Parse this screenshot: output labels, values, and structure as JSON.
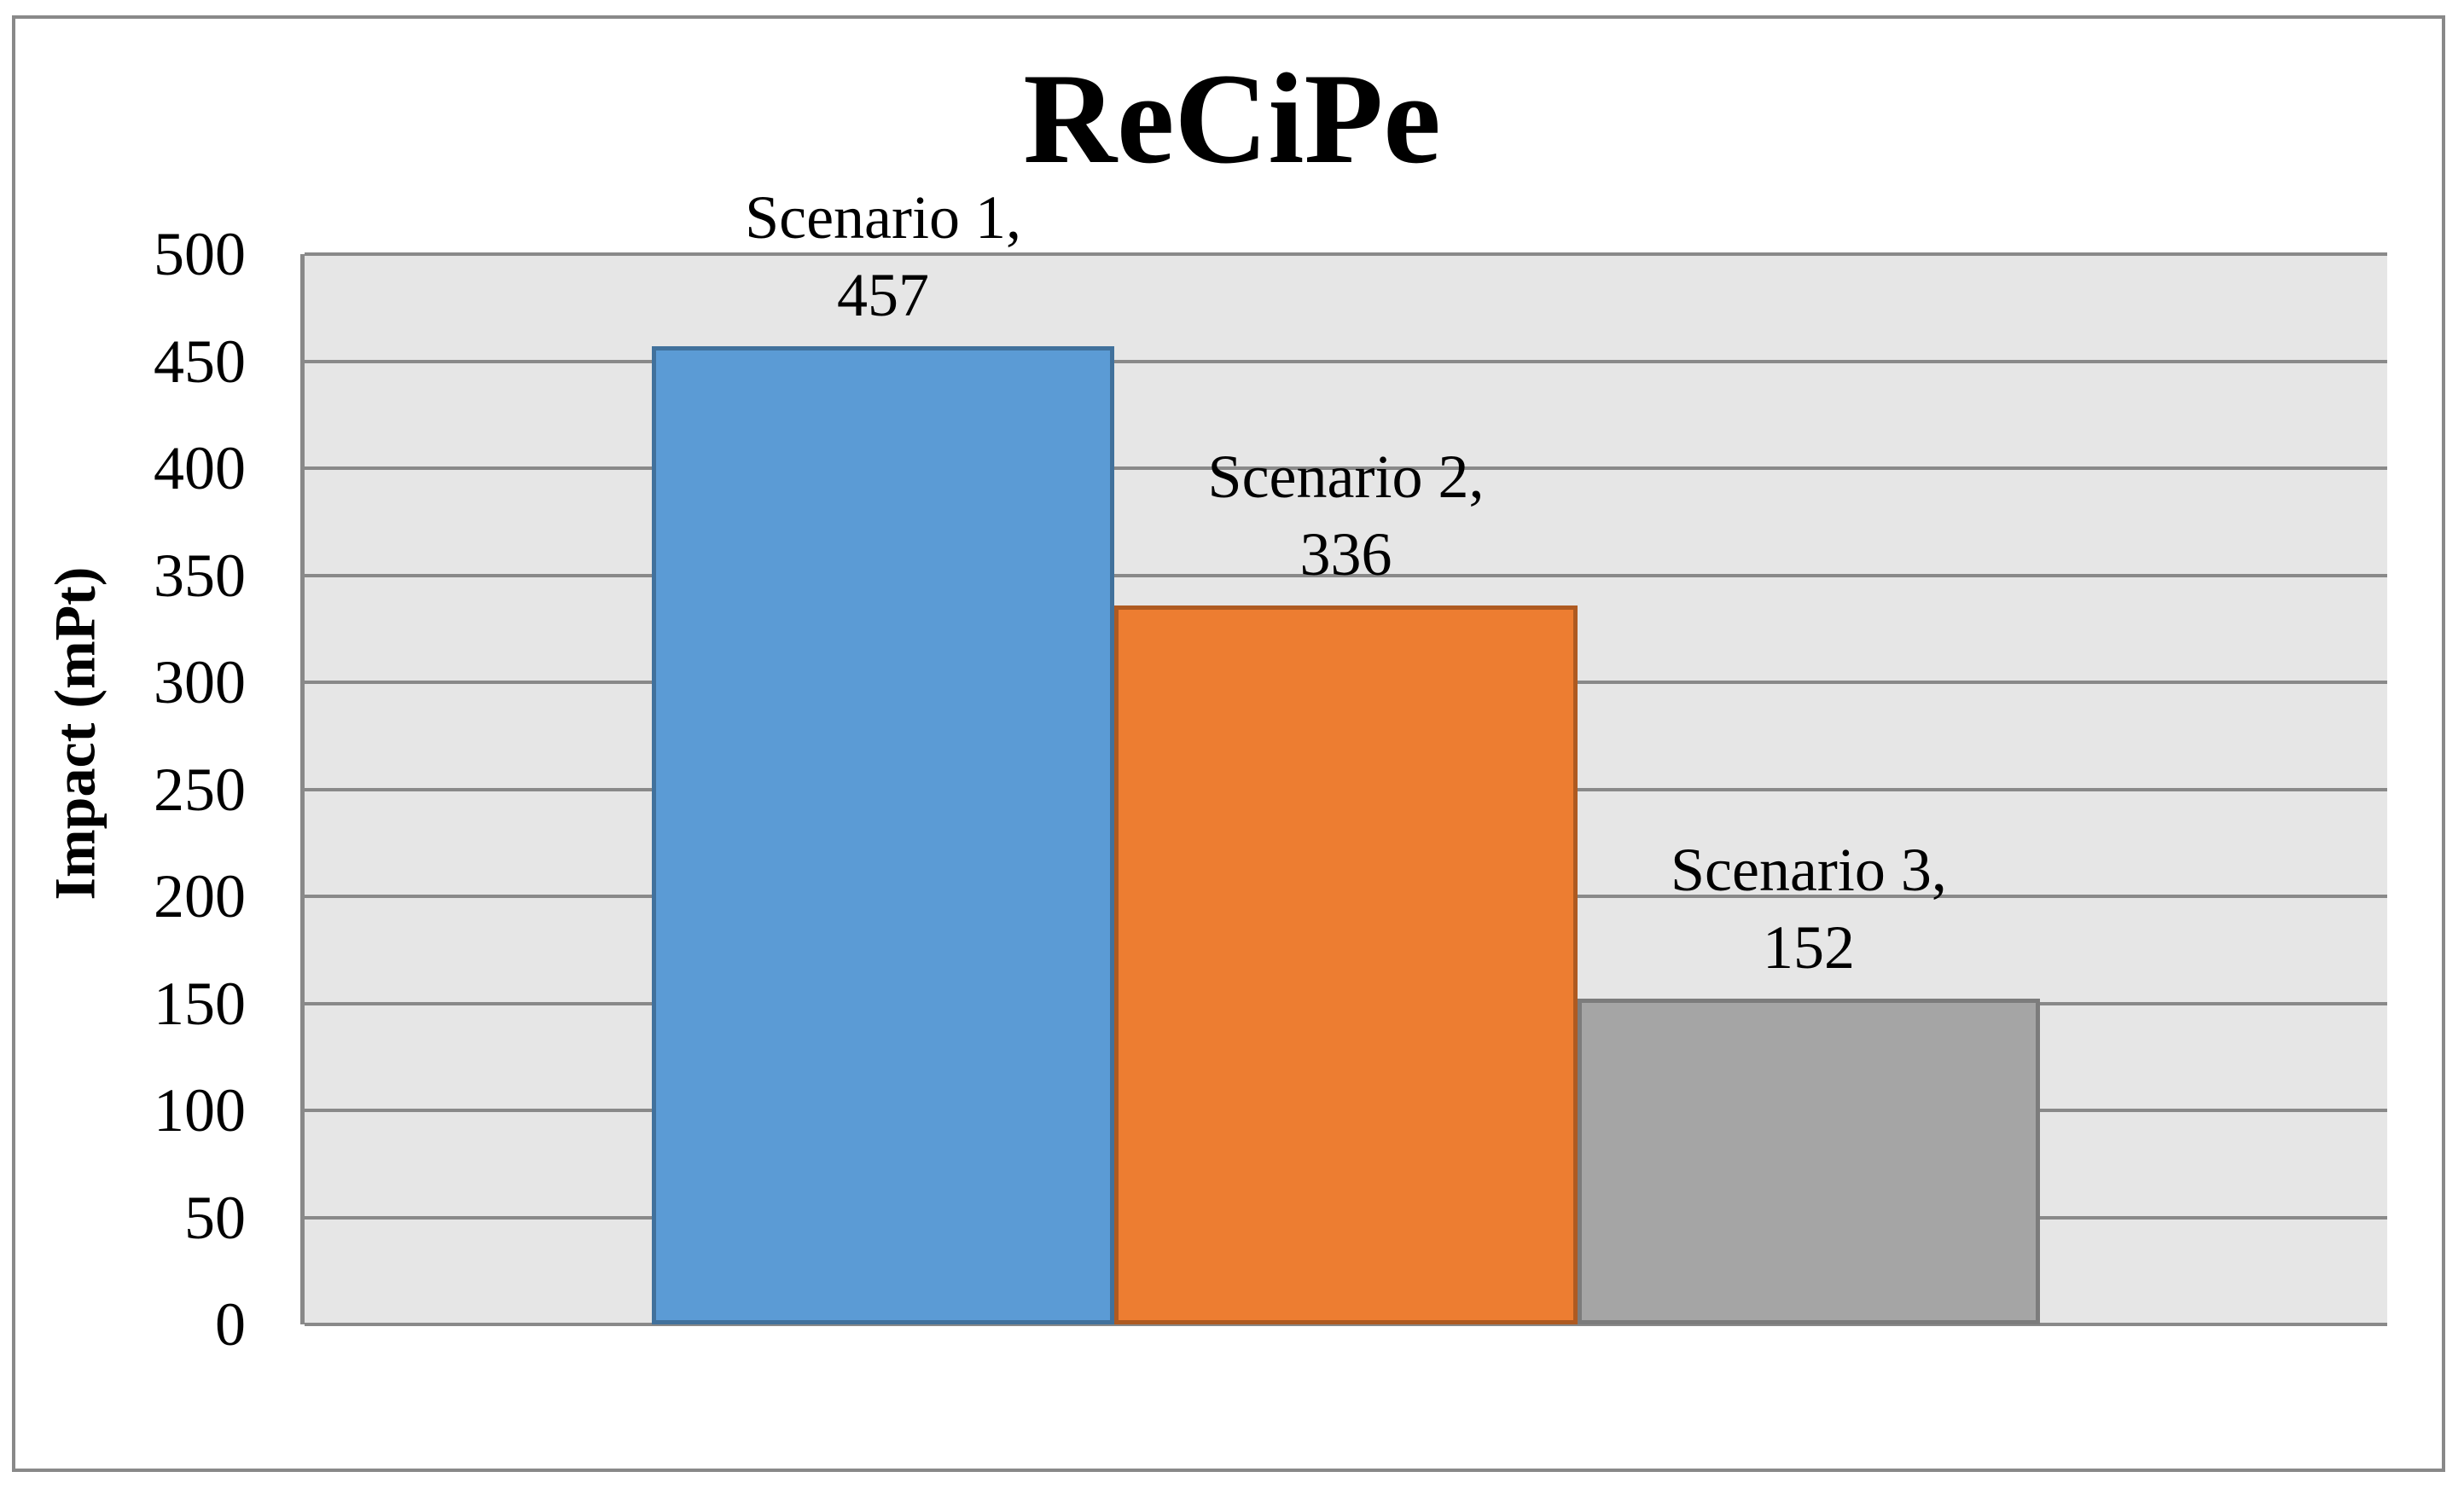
{
  "chart_data": {
    "type": "bar",
    "title": "ReCiPe",
    "xlabel": "",
    "ylabel": "Impact (mPt)",
    "categories": [
      "Scenario 1",
      "Scenario 2",
      "Scenario 3"
    ],
    "values": [
      457,
      336,
      152
    ],
    "series": [
      {
        "name": "Scenario 1",
        "value": 457,
        "label_line1": "Scenario 1,",
        "label_line2": "457",
        "fill": "#5B9BD5",
        "border": "#41719C"
      },
      {
        "name": "Scenario 2",
        "value": 336,
        "label_line1": "Scenario 2,",
        "label_line2": "336",
        "fill": "#ED7D31",
        "border": "#AE5A21"
      },
      {
        "name": "Scenario 3",
        "value": 152,
        "label_line1": "Scenario 3,",
        "label_line2": "152",
        "fill": "#A5A5A5",
        "border": "#7C7C7C"
      }
    ],
    "ylim": [
      0,
      500
    ],
    "yticks": [
      0,
      50,
      100,
      150,
      200,
      250,
      300,
      350,
      400,
      450,
      500
    ],
    "grid": true,
    "legend": "none",
    "colors": {
      "plot_background": "#E6E6E6",
      "gridline": "#898989",
      "axis_line": "#898989",
      "outer_border": "#898989",
      "text": "#000000"
    }
  }
}
